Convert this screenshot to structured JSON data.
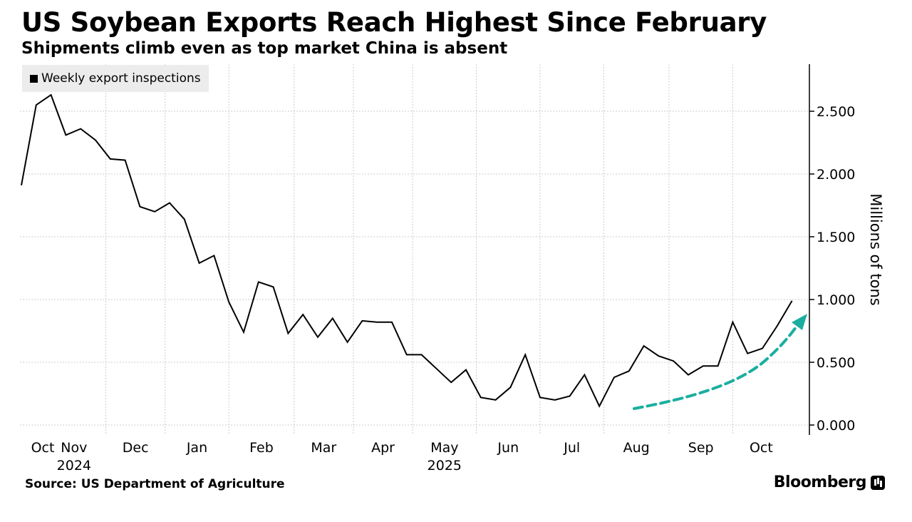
{
  "title": "US Soybean Exports Reach Highest Since February",
  "subtitle": "Shipments climb even as top market China is absent",
  "source": "Source: US Department of Agriculture",
  "brand": "Bloomberg",
  "colors": {
    "line": "#000000",
    "arrow": "#1aae9f",
    "grid": "#cccccc",
    "legend_bg": "#ececec"
  },
  "chart_data": {
    "type": "line",
    "title": "US Soybean Exports Reach Highest Since February",
    "subtitle": "Shipments climb even as top market China is absent",
    "legend": [
      "Weekly export inspections"
    ],
    "legend_position": "top-left",
    "ylabel": "Millions of tons",
    "ylim": [
      0,
      2.9
    ],
    "yticks": [
      0,
      0.5,
      1,
      1.5,
      2,
      2.5
    ],
    "ytick_labels": [
      "0.000",
      "0.500",
      "1.000",
      "1.500",
      "2.000",
      "2.500"
    ],
    "x_month_labels": [
      "Oct",
      "Nov",
      "Dec",
      "Jan",
      "Feb",
      "Mar",
      "Apr",
      "May",
      "Jun",
      "Jul",
      "Aug",
      "Sep",
      "Oct"
    ],
    "x_year_labels": [
      "2024",
      "2025"
    ],
    "x_unit": "weeks since first observation (late Sep 2024)",
    "month_boundaries": [
      1.4,
      5.7,
      9.7,
      14.0,
      18.4,
      22.4,
      26.4,
      30.7,
      35.0,
      39.3,
      43.7,
      48.0,
      52.0
    ],
    "gridlines": true,
    "series": [
      {
        "name": "Weekly export inspections",
        "values": [
          1.91,
          2.55,
          2.63,
          2.31,
          2.36,
          2.27,
          2.12,
          2.11,
          1.74,
          1.7,
          1.77,
          1.64,
          1.29,
          1.35,
          0.98,
          0.74,
          1.14,
          1.1,
          0.73,
          0.88,
          0.7,
          0.85,
          0.66,
          0.83,
          0.82,
          0.82,
          0.56,
          0.56,
          0.45,
          0.34,
          0.44,
          0.22,
          0.2,
          0.3,
          0.56,
          0.22,
          0.2,
          0.23,
          0.4,
          0.15,
          0.38,
          0.43,
          0.63,
          0.55,
          0.51,
          0.4,
          0.47,
          0.47,
          0.82,
          0.57,
          0.61,
          0.79,
          0.99
        ]
      }
    ],
    "annotation": {
      "type": "dashed-arrow",
      "color": "#1aae9f",
      "description": "upward trend arrow from Jul to Oct"
    }
  }
}
